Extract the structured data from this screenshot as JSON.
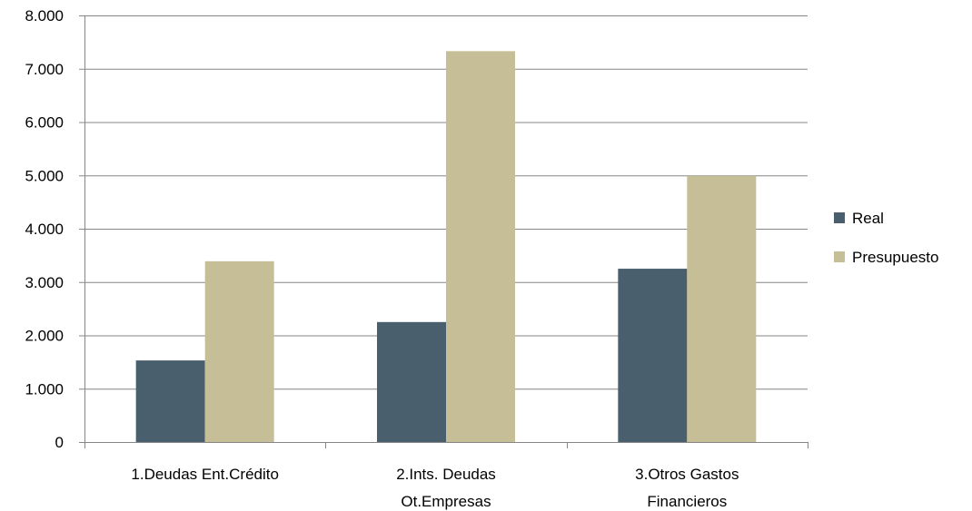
{
  "chart_data": {
    "type": "bar",
    "categories": [
      [
        "1.Deudas Ent.Crédito"
      ],
      [
        "2.Ints. Deudas",
        "Ot.Empresas"
      ],
      [
        "3.Otros Gastos",
        "Financieros"
      ]
    ],
    "series": [
      {
        "name": "Real",
        "color": "#4a5f6d",
        "values": [
          1530,
          2250,
          3250
        ]
      },
      {
        "name": "Presupuesto",
        "color": "#c5be97",
        "values": [
          3390,
          7330,
          4990
        ]
      }
    ],
    "ylim": [
      0,
      8000
    ],
    "yticks": [
      0,
      1000,
      2000,
      3000,
      4000,
      5000,
      6000,
      7000,
      8000
    ],
    "ytick_labels": [
      "0",
      "1.000",
      "2.000",
      "3.000",
      "4.000",
      "5.000",
      "6.000",
      "7.000",
      "8.000"
    ],
    "grid": true,
    "gridline_color": "#868686",
    "legend_position": "right"
  }
}
